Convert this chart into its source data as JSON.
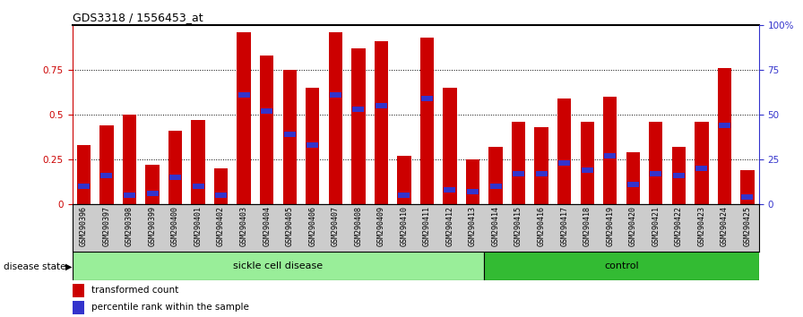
{
  "title": "GDS3318 / 1556453_at",
  "samples": [
    "GSM290396",
    "GSM290397",
    "GSM290398",
    "GSM290399",
    "GSM290400",
    "GSM290401",
    "GSM290402",
    "GSM290403",
    "GSM290404",
    "GSM290405",
    "GSM290406",
    "GSM290407",
    "GSM290408",
    "GSM290409",
    "GSM290410",
    "GSM290411",
    "GSM290412",
    "GSM290413",
    "GSM290414",
    "GSM290415",
    "GSM290416",
    "GSM290417",
    "GSM290418",
    "GSM290419",
    "GSM290420",
    "GSM290421",
    "GSM290422",
    "GSM290423",
    "GSM290424",
    "GSM290425"
  ],
  "red_values": [
    0.33,
    0.44,
    0.5,
    0.22,
    0.41,
    0.47,
    0.2,
    0.96,
    0.83,
    0.75,
    0.65,
    0.96,
    0.87,
    0.91,
    0.27,
    0.93,
    0.65,
    0.25,
    0.32,
    0.46,
    0.43,
    0.59,
    0.46,
    0.6,
    0.29,
    0.46,
    0.32,
    0.46,
    0.76,
    0.19
  ],
  "blue_values": [
    0.1,
    0.16,
    0.05,
    0.06,
    0.15,
    0.1,
    0.05,
    0.61,
    0.52,
    0.39,
    0.33,
    0.61,
    0.53,
    0.55,
    0.05,
    0.59,
    0.08,
    0.07,
    0.1,
    0.17,
    0.17,
    0.23,
    0.19,
    0.27,
    0.11,
    0.17,
    0.16,
    0.2,
    0.44,
    0.04
  ],
  "sickle_count": 18,
  "control_count": 12,
  "red_color": "#CC0000",
  "blue_color": "#3333CC",
  "light_green": "#99EE99",
  "dark_green": "#33BB33",
  "bar_bg": "#CCCCCC",
  "yticks": [
    0,
    0.25,
    0.5,
    0.75
  ],
  "right_yticklabels": [
    "0",
    "25",
    "50",
    "75",
    "100%"
  ]
}
